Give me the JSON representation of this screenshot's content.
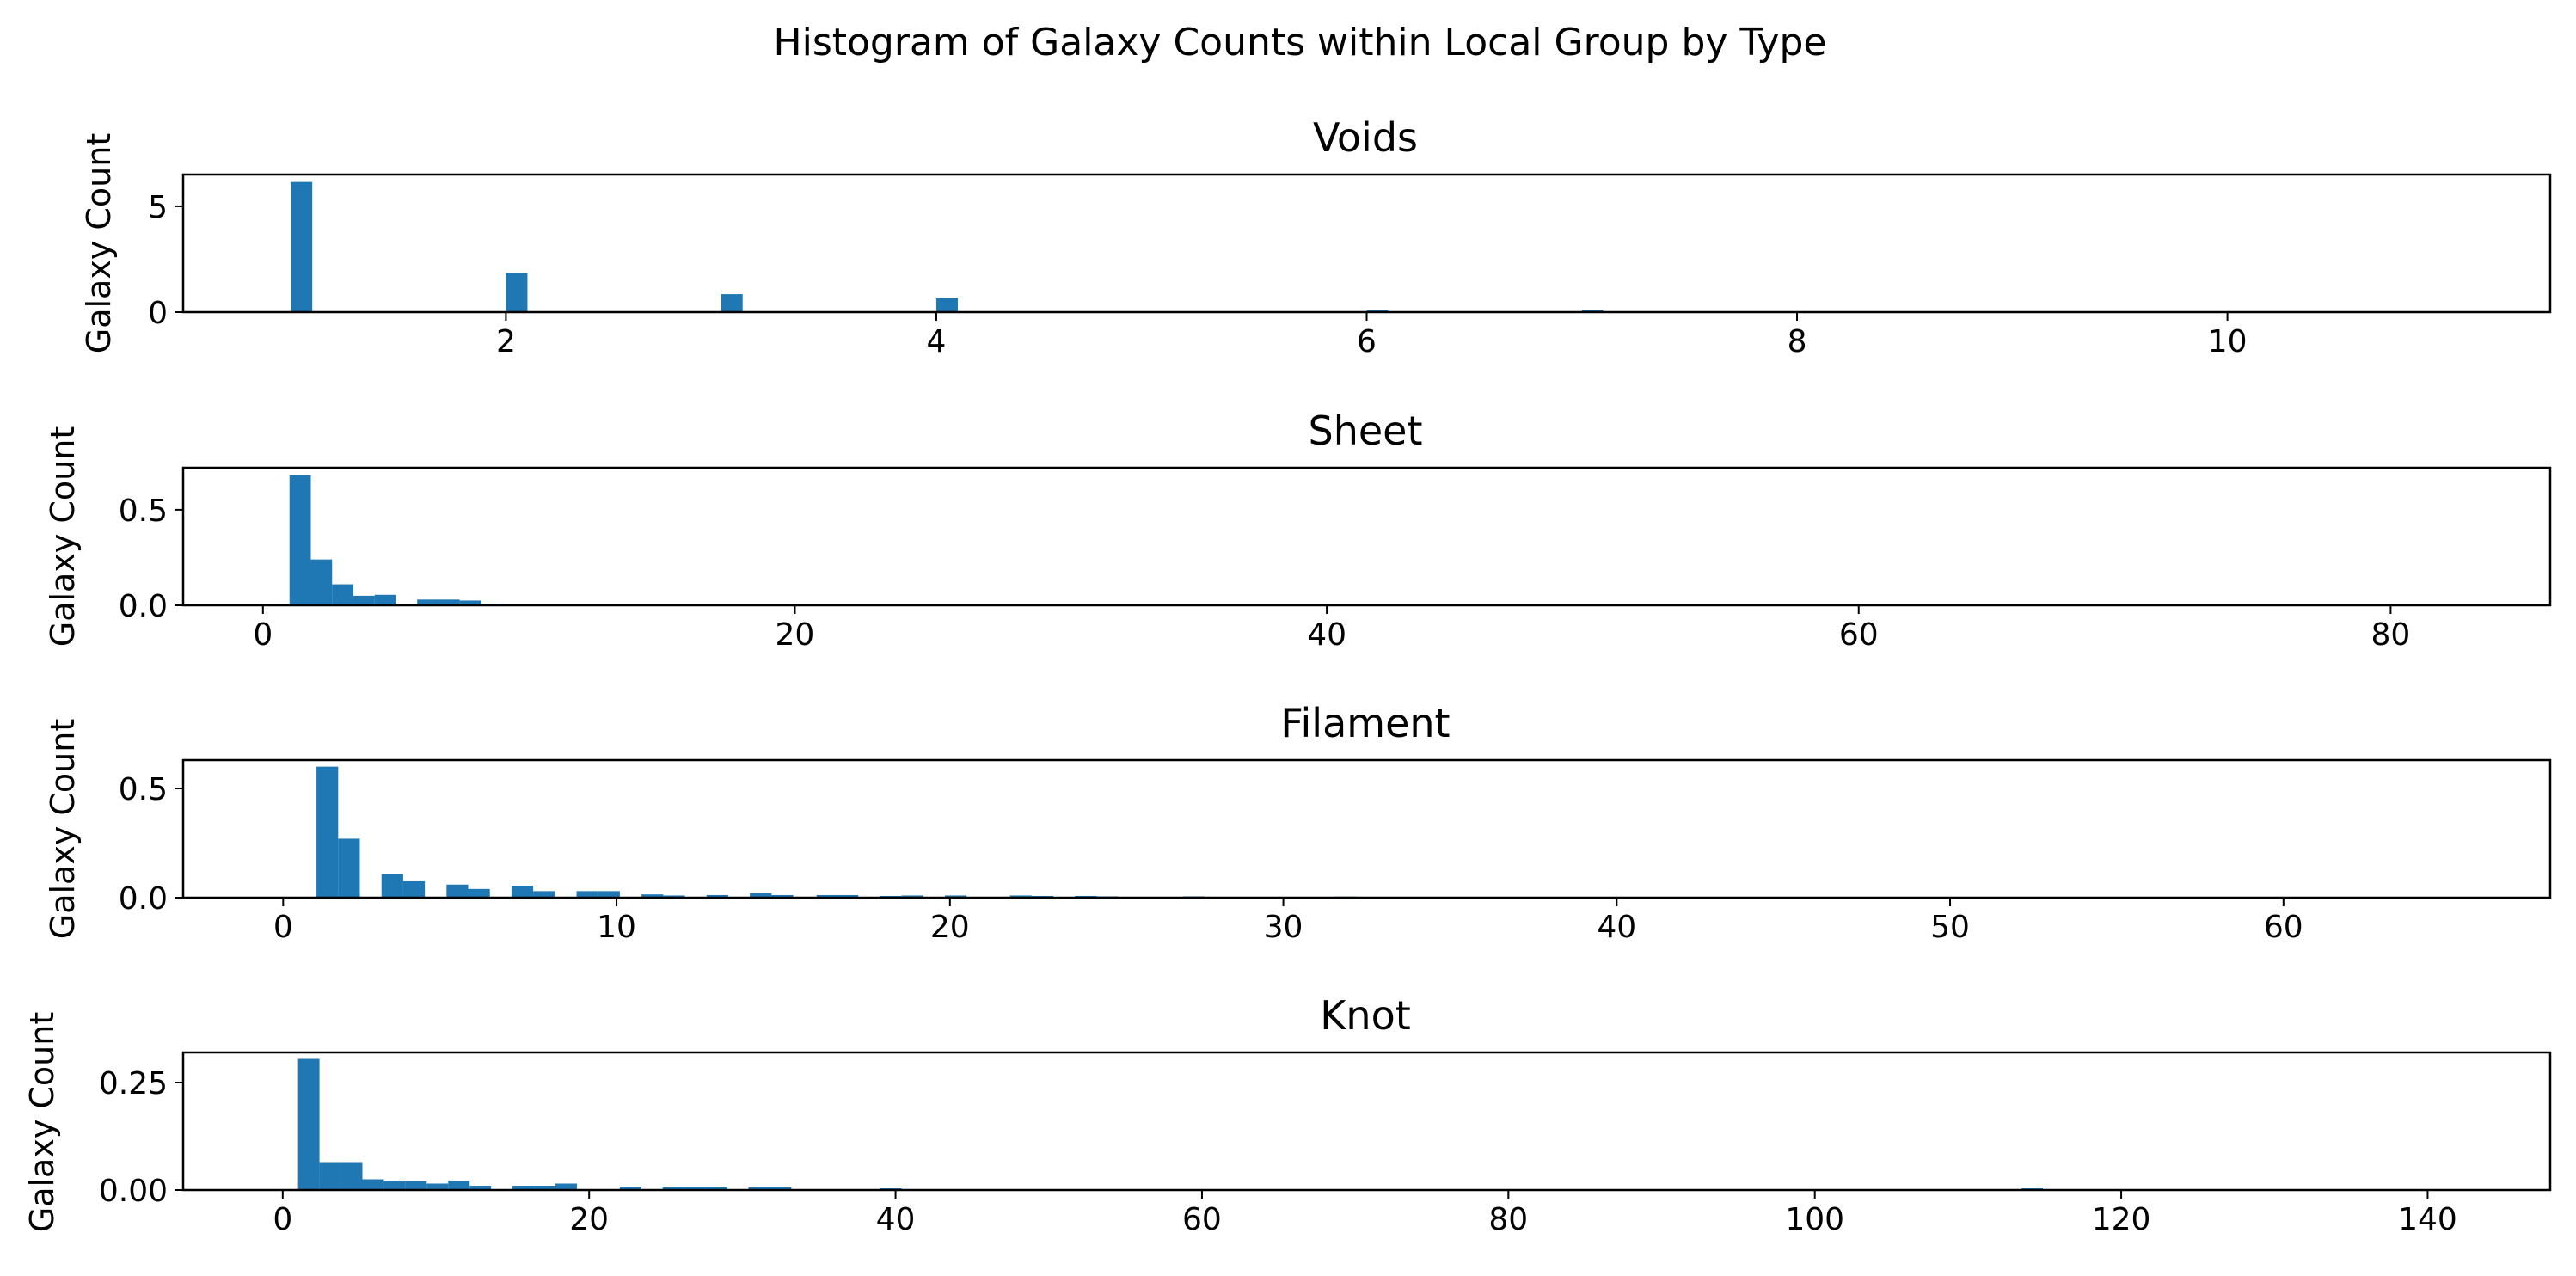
{
  "colors": {
    "bar": "#1f77b4",
    "axis": "#000000",
    "background": "#ffffff"
  },
  "suptitle": "Histogram of Galaxy Counts within Local Group by Type",
  "chart_data": [
    {
      "type": "bar",
      "title": "Voids",
      "ylabel": "Galaxy Count",
      "xlim": [
        0.5,
        11.5
      ],
      "ylim": [
        0,
        6.5
      ],
      "xticks": [
        2,
        4,
        6,
        8,
        10
      ],
      "yticks": [
        0,
        5
      ],
      "ytick_labels": [
        "0",
        "5"
      ],
      "bin_width": 0.1,
      "bins": [
        {
          "x": 1.0,
          "h": 6.15
        },
        {
          "x": 2.0,
          "h": 1.85
        },
        {
          "x": 3.0,
          "h": 0.85
        },
        {
          "x": 4.0,
          "h": 0.65
        },
        {
          "x": 6.0,
          "h": 0.1
        },
        {
          "x": 7.0,
          "h": 0.1
        }
      ]
    },
    {
      "type": "bar",
      "title": "Sheet",
      "ylabel": "Galaxy Count",
      "xlim": [
        -3.0,
        86.0
      ],
      "ylim": [
        0,
        0.72
      ],
      "xticks": [
        0,
        20,
        40,
        60,
        80
      ],
      "yticks": [
        0,
        0.5
      ],
      "ytick_labels": [
        "0.0",
        "0.5"
      ],
      "bin_width": 0.8,
      "bins": [
        {
          "x": 1.0,
          "h": 0.68
        },
        {
          "x": 1.8,
          "h": 0.24
        },
        {
          "x": 2.6,
          "h": 0.11
        },
        {
          "x": 3.4,
          "h": 0.05
        },
        {
          "x": 4.2,
          "h": 0.055
        },
        {
          "x": 5.8,
          "h": 0.03
        },
        {
          "x": 6.6,
          "h": 0.03
        },
        {
          "x": 7.4,
          "h": 0.025
        },
        {
          "x": 8.2,
          "h": 0.008
        }
      ]
    },
    {
      "type": "bar",
      "title": "Filament",
      "ylabel": "Galaxy Count",
      "xlim": [
        -3.0,
        68.0
      ],
      "ylim": [
        0,
        0.63
      ],
      "xticks": [
        0,
        10,
        20,
        30,
        40,
        50,
        60
      ],
      "yticks": [
        0,
        0.5
      ],
      "ytick_labels": [
        "0.0",
        "0.5"
      ],
      "bin_width": 0.65,
      "bins": [
        {
          "x": 1.0,
          "h": 0.6
        },
        {
          "x": 1.65,
          "h": 0.27
        },
        {
          "x": 2.95,
          "h": 0.11
        },
        {
          "x": 3.6,
          "h": 0.075
        },
        {
          "x": 4.9,
          "h": 0.06
        },
        {
          "x": 5.55,
          "h": 0.04
        },
        {
          "x": 6.85,
          "h": 0.055
        },
        {
          "x": 7.5,
          "h": 0.03
        },
        {
          "x": 8.8,
          "h": 0.03
        },
        {
          "x": 9.45,
          "h": 0.03
        },
        {
          "x": 10.75,
          "h": 0.015
        },
        {
          "x": 11.4,
          "h": 0.01
        },
        {
          "x": 12.7,
          "h": 0.012
        },
        {
          "x": 14.0,
          "h": 0.02
        },
        {
          "x": 14.65,
          "h": 0.012
        },
        {
          "x": 16.0,
          "h": 0.012
        },
        {
          "x": 16.6,
          "h": 0.012
        },
        {
          "x": 17.9,
          "h": 0.008
        },
        {
          "x": 18.55,
          "h": 0.01
        },
        {
          "x": 19.85,
          "h": 0.01
        },
        {
          "x": 21.8,
          "h": 0.01
        },
        {
          "x": 22.45,
          "h": 0.008
        },
        {
          "x": 23.75,
          "h": 0.008
        },
        {
          "x": 24.4,
          "h": 0.006
        },
        {
          "x": 27.0,
          "h": 0.006
        },
        {
          "x": 31.55,
          "h": 0.005
        }
      ]
    },
    {
      "type": "bar",
      "title": "Knot",
      "ylabel": "Galaxy Count",
      "xlim": [
        -6.5,
        148.0
      ],
      "ylim": [
        0,
        0.32
      ],
      "xticks": [
        0,
        20,
        40,
        60,
        80,
        100,
        120,
        140
      ],
      "yticks": [
        0,
        0.25
      ],
      "ytick_labels": [
        "0.00",
        "0.25"
      ],
      "bin_width": 1.4,
      "bins": [
        {
          "x": 1.0,
          "h": 0.305
        },
        {
          "x": 2.4,
          "h": 0.065
        },
        {
          "x": 3.8,
          "h": 0.065
        },
        {
          "x": 5.2,
          "h": 0.025
        },
        {
          "x": 6.6,
          "h": 0.02
        },
        {
          "x": 8.0,
          "h": 0.022
        },
        {
          "x": 9.4,
          "h": 0.015
        },
        {
          "x": 10.8,
          "h": 0.022
        },
        {
          "x": 12.2,
          "h": 0.01
        },
        {
          "x": 15.0,
          "h": 0.01
        },
        {
          "x": 16.4,
          "h": 0.01
        },
        {
          "x": 17.8,
          "h": 0.015
        },
        {
          "x": 22.0,
          "h": 0.008
        },
        {
          "x": 24.8,
          "h": 0.006
        },
        {
          "x": 26.2,
          "h": 0.006
        },
        {
          "x": 27.6,
          "h": 0.006
        },
        {
          "x": 30.4,
          "h": 0.006
        },
        {
          "x": 31.8,
          "h": 0.006
        },
        {
          "x": 39.0,
          "h": 0.004
        },
        {
          "x": 113.5,
          "h": 0.004
        }
      ]
    }
  ]
}
